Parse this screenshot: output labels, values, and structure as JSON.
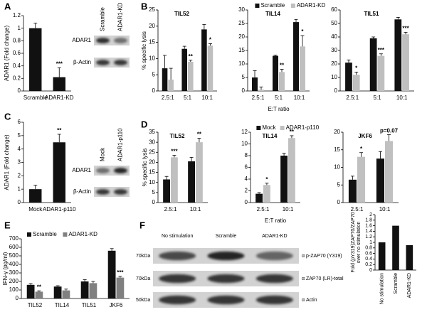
{
  "panel_labels": [
    "A",
    "B",
    "C",
    "D",
    "E",
    "F"
  ],
  "chart_data": [
    {
      "type": "bar",
      "ylabel": "ADAR1 (Fold change)",
      "categories": [
        "Scramble",
        "ADAR1-KD"
      ],
      "series": [
        {
          "color": "#111111",
          "values": [
            1.0,
            0.22
          ],
          "errors": [
            0.08,
            0.15
          ],
          "significance": [
            null,
            "***"
          ]
        }
      ],
      "ylim": [
        0,
        1.2
      ],
      "yticks": [
        0,
        0.2,
        0.4,
        0.6,
        0.8,
        1,
        1.2
      ]
    },
    {
      "type": "bar",
      "title": "TIL52",
      "ylabel": "% specific lysis",
      "categories": [
        "2.5:1",
        "5:1",
        "10:1"
      ],
      "series": [
        {
          "color": "#111111",
          "values": [
            7,
            13,
            19
          ],
          "errors": [
            4,
            0.8,
            1.5
          ]
        },
        {
          "color": "#bfbfbf",
          "values": [
            3.5,
            9,
            14
          ],
          "errors": [
            3.5,
            0.5,
            0.6
          ],
          "significance": [
            null,
            "**",
            "*"
          ]
        }
      ],
      "ylim": [
        0,
        25
      ],
      "yticks": [
        0,
        5,
        10,
        15,
        20,
        25
      ]
    },
    {
      "type": "bar",
      "title": "TIL14",
      "xlabel": "E:T ratio",
      "legend": "top",
      "categories": [
        "2.5:1",
        "5:1",
        "10:1"
      ],
      "series": [
        {
          "name": "Scramble",
          "color": "#111111",
          "values": [
            5,
            13,
            25.5
          ],
          "errors": [
            2.5,
            0.3,
            1
          ]
        },
        {
          "name": "ADAR1-KD",
          "color": "#bfbfbf",
          "values": [
            0.5,
            7,
            16.5
          ],
          "errors": [
            1,
            1,
            4
          ],
          "significance": [
            null,
            "**",
            "*"
          ]
        }
      ],
      "ylim": [
        0,
        30
      ],
      "yticks": [
        0,
        5,
        10,
        15,
        20,
        25,
        30
      ]
    },
    {
      "type": "bar",
      "title": "TIL51",
      "categories": [
        "2.5:1",
        "5:1",
        "10:1"
      ],
      "series": [
        {
          "color": "#111111",
          "values": [
            21,
            39,
            53
          ],
          "errors": [
            2,
            1,
            1.5
          ]
        },
        {
          "color": "#bfbfbf",
          "values": [
            12,
            26,
            42
          ],
          "errors": [
            2,
            1.5,
            1.5
          ],
          "significance": [
            "*",
            "***",
            "***"
          ]
        }
      ],
      "ylim": [
        0,
        60
      ],
      "yticks": [
        0,
        10,
        20,
        30,
        40,
        50,
        60
      ]
    },
    {
      "type": "bar",
      "ylabel": "ADAR1 (Fold change)",
      "categories": [
        "Mock",
        "ADAR1-p110"
      ],
      "series": [
        {
          "color": "#111111",
          "values": [
            1.0,
            4.5
          ],
          "errors": [
            0.3,
            0.6
          ],
          "significance": [
            null,
            "**"
          ]
        }
      ],
      "ylim": [
        0,
        6
      ],
      "yticks": [
        0,
        1,
        2,
        3,
        4,
        5,
        6
      ]
    },
    {
      "type": "bar",
      "title": "TIL52",
      "ylabel": "% specific lysis",
      "categories": [
        "2.5:1",
        "10:1"
      ],
      "series": [
        {
          "color": "#111111",
          "values": [
            11.5,
            20.5
          ],
          "errors": [
            1.5,
            2
          ]
        },
        {
          "color": "#c0c0c0",
          "values": [
            22.5,
            30
          ],
          "errors": [
            1,
            2
          ],
          "significance": [
            "***",
            "**"
          ]
        }
      ],
      "ylim": [
        0,
        35
      ],
      "yticks": [
        0,
        5,
        10,
        15,
        20,
        25,
        30,
        35
      ]
    },
    {
      "type": "bar",
      "title": "TIL14",
      "xlabel": "E:T ratio",
      "legend": "top",
      "categories": [
        "2.5:1",
        "10:1"
      ],
      "series": [
        {
          "name": "Mock",
          "color": "#111111",
          "values": [
            1.5,
            8
          ],
          "errors": [
            0.2,
            0.4
          ]
        },
        {
          "name": "ADAR1-p110",
          "color": "#c0c0c0",
          "values": [
            3,
            11
          ],
          "errors": [
            0.3,
            0.4
          ],
          "significance": [
            "*",
            "**"
          ]
        }
      ],
      "ylim": [
        0,
        12
      ],
      "yticks": [
        0,
        2,
        4,
        6,
        8,
        10,
        12
      ]
    },
    {
      "type": "bar",
      "title": "JKF6",
      "categories": [
        "2.5:1",
        "10:1"
      ],
      "series": [
        {
          "color": "#111111",
          "values": [
            6.5,
            12.5
          ],
          "errors": [
            1,
            2
          ]
        },
        {
          "color": "#c0c0c0",
          "values": [
            13,
            17.5
          ],
          "errors": [
            1.2,
            1.8
          ],
          "significance": [
            "*",
            "p=0.07"
          ]
        }
      ],
      "ylim": [
        0,
        20
      ],
      "yticks": [
        0,
        5,
        10,
        15,
        20
      ]
    },
    {
      "type": "bar",
      "ylabel": "IFN-γ (pg/ml)",
      "legend": "top-left",
      "categories": [
        "TIL52",
        "TIL14",
        "TIL51",
        "JKF6"
      ],
      "series": [
        {
          "name": "Scramble",
          "color": "#111111",
          "values": [
            160,
            140,
            200,
            560
          ],
          "errors": [
            15,
            10,
            20,
            25
          ]
        },
        {
          "name": "ADAR1-KD",
          "color": "#808080",
          "values": [
            80,
            95,
            180,
            245
          ],
          "errors": [
            10,
            15,
            20,
            15
          ],
          "significance": [
            "**",
            null,
            null,
            "***"
          ]
        }
      ],
      "ylim": [
        0,
        700
      ],
      "yticks": [
        0,
        100,
        200,
        300,
        400,
        500,
        600,
        700
      ]
    },
    {
      "type": "bar",
      "ylabel": [
        "Fold (pY319)ZAP70/ZAP70",
        "over no stimulation"
      ],
      "categories": [
        "No stimulation",
        "Scramble",
        "ADAR1-KD"
      ],
      "series": [
        {
          "color": "#111111",
          "values": [
            1.0,
            1.6,
            0.9
          ]
        }
      ],
      "ylim": [
        0,
        2
      ],
      "yticks": [
        0,
        0.2,
        0.4,
        0.6,
        0.8,
        1,
        1.2,
        1.4,
        1.6,
        1.8,
        2
      ]
    }
  ],
  "blots": [
    {
      "lanes": [
        "Scramble",
        "ADAR1-KD"
      ],
      "rows": [
        "ADAR1",
        "β-Actin"
      ]
    },
    {
      "lanes": [
        "Mock",
        "ADAR1-p110"
      ],
      "rows": [
        "ADAR1",
        "β-Actin"
      ]
    },
    {
      "lanes": [
        "No stimulation",
        "Scramble",
        "ADAR1-KD"
      ],
      "rows": [
        {
          "size": "70kDa",
          "label": "α p-ZAP70 (Y319)"
        },
        {
          "size": "70kDa",
          "label": "α ZAP70 (LR)-total"
        },
        {
          "size": "50kDa",
          "label": "α Actin"
        }
      ]
    }
  ]
}
